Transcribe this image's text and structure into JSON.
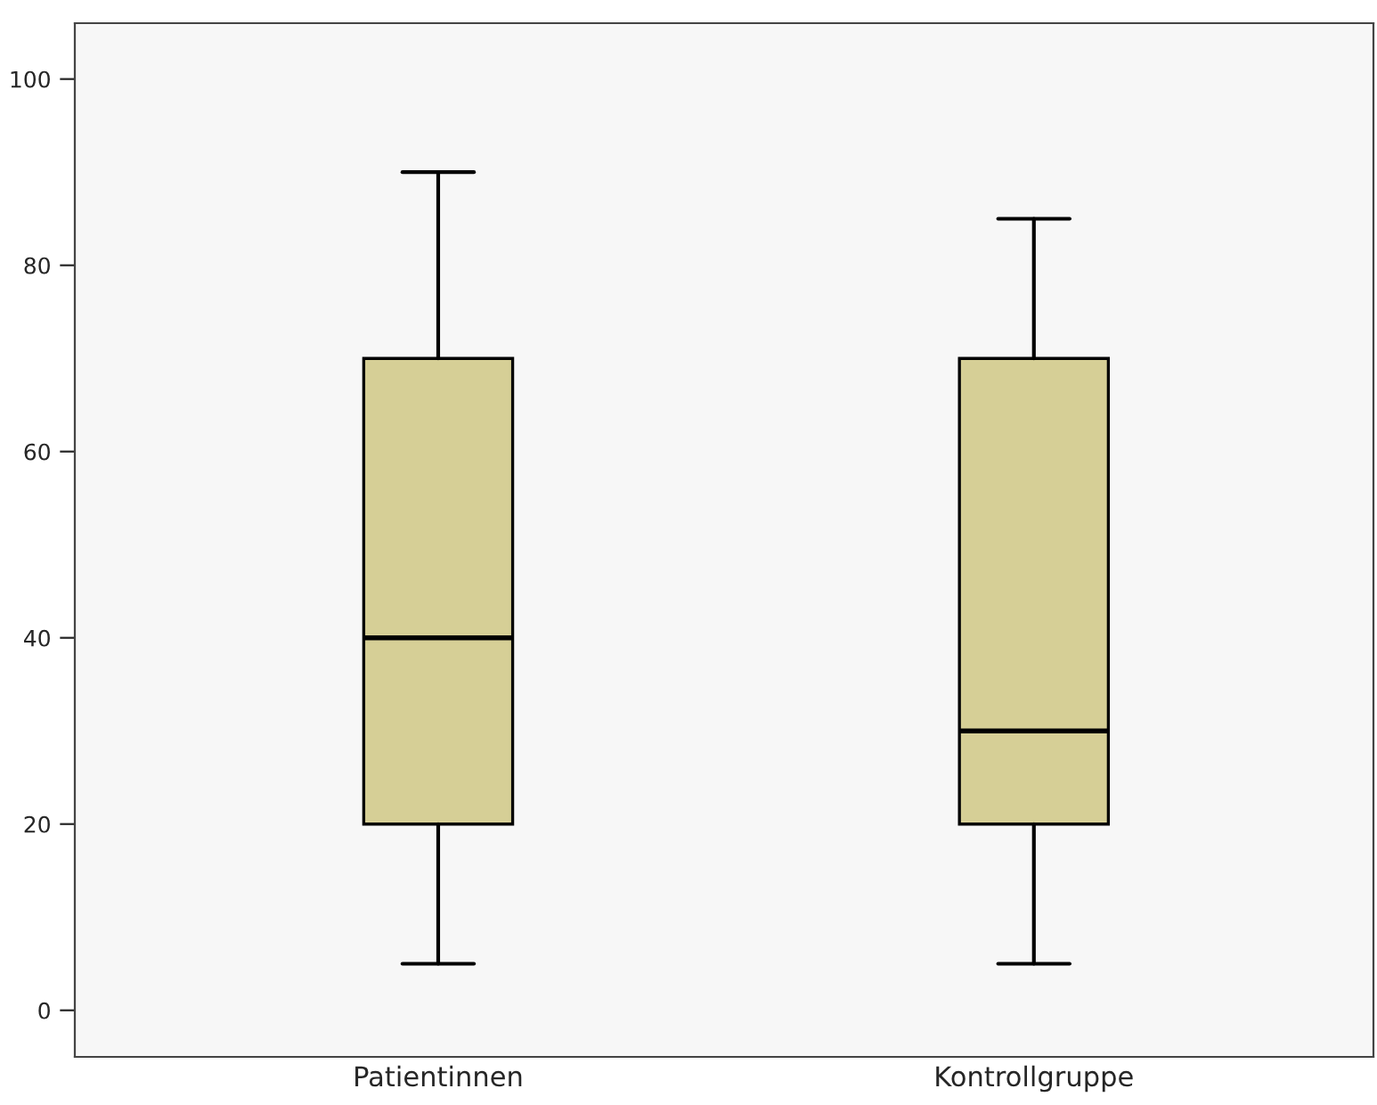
{
  "chart_data": {
    "type": "box",
    "categories": [
      "Patientinnen",
      "Kontrollgruppe"
    ],
    "boxes": [
      {
        "low": 5,
        "q1": 20,
        "median": 40,
        "q3": 70,
        "high": 90
      },
      {
        "low": 5,
        "q1": 20,
        "median": 30,
        "q3": 70,
        "high": 85
      }
    ],
    "color": "#d6cf96",
    "ylim": [
      -5,
      106
    ],
    "yticks": [
      0,
      20,
      40,
      60,
      80,
      100
    ],
    "grid": false,
    "legend": false
  }
}
